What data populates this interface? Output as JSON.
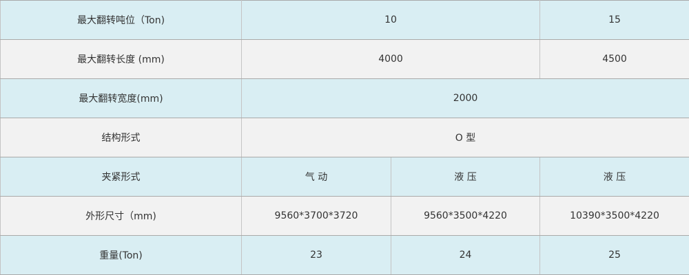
{
  "table": {
    "rows": [
      {
        "label": "最大翻转吨位（Ton)",
        "cells": [
          "10",
          "15"
        ]
      },
      {
        "label": "最大翻转长度 (mm)",
        "cells": [
          "4000",
          "4500"
        ]
      },
      {
        "label": "最大翻转宽度(mm)",
        "cells": [
          "2000"
        ]
      },
      {
        "label": "结构形式",
        "cells": [
          "O 型"
        ]
      },
      {
        "label": "夹紧形式",
        "cells": [
          "气 动",
          "液 压",
          "液 压"
        ]
      },
      {
        "label": "外形尺寸（mm)",
        "cells": [
          "9560*3700*3720",
          "9560*3500*4220",
          "10390*3500*4220"
        ]
      },
      {
        "label": "重量(Ton)",
        "cells": [
          "23",
          "24",
          "25"
        ]
      }
    ],
    "colors": {
      "row_blue": "#d9eef3",
      "row_gray": "#f2f2f2",
      "text": "#333333"
    }
  }
}
